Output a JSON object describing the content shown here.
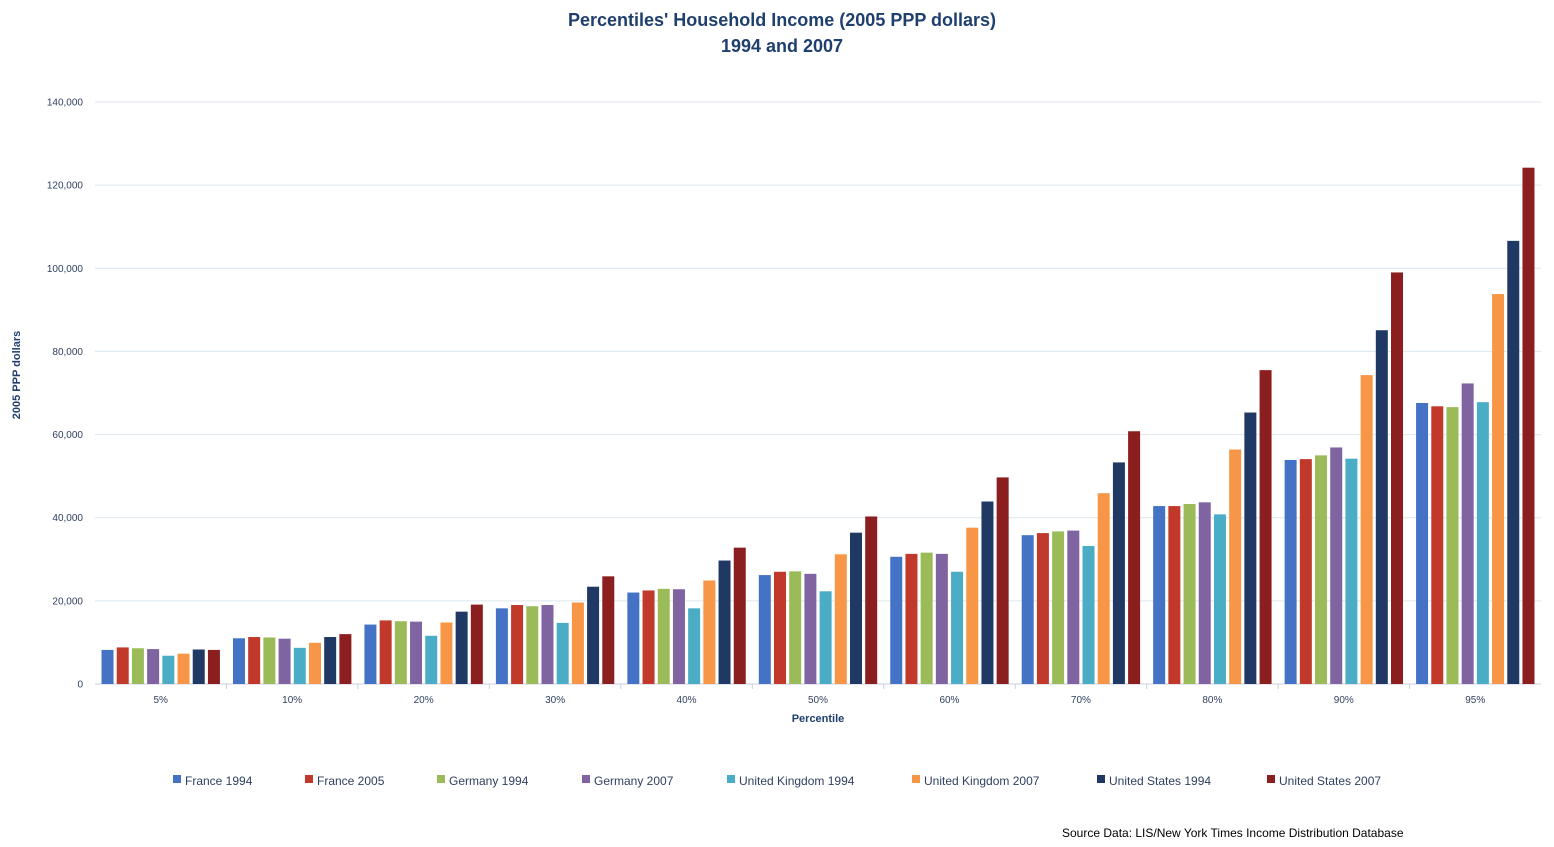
{
  "chart_data": {
    "type": "bar",
    "title": "Percentiles' Household Income (2005 PPP dollars)",
    "subtitle": "1994 and 2007",
    "xlabel": "Percentile",
    "ylabel": "2005 PPP dollars",
    "ylim": [
      0,
      140000
    ],
    "yticks": [
      0,
      20000,
      40000,
      60000,
      80000,
      100000,
      120000,
      140000
    ],
    "ytick_labels": [
      "0",
      "20,000",
      "40,000",
      "60,000",
      "80,000",
      "100,000",
      "120,000",
      "140,000"
    ],
    "grid": true,
    "legend_position": "bottom",
    "categories": [
      "5%",
      "10%",
      "20%",
      "30%",
      "40%",
      "50%",
      "60%",
      "70%",
      "80%",
      "90%",
      "95%"
    ],
    "series": [
      {
        "name": "France 1994",
        "color": "#4472c4",
        "values": [
          8200,
          11000,
          14300,
          18200,
          22000,
          26200,
          30600,
          35800,
          42800,
          53900,
          67600
        ]
      },
      {
        "name": "France 2005",
        "color": "#c0392b",
        "values": [
          8800,
          11300,
          15300,
          19000,
          22500,
          27000,
          31300,
          36300,
          42800,
          54100,
          66800
        ]
      },
      {
        "name": "Germany 1994",
        "color": "#9bbb59",
        "values": [
          8600,
          11200,
          15100,
          18700,
          22900,
          27100,
          31600,
          36700,
          43300,
          55000,
          66600
        ]
      },
      {
        "name": "Germany 2007",
        "color": "#8064a2",
        "values": [
          8400,
          10900,
          15000,
          19000,
          22800,
          26500,
          31300,
          36900,
          43700,
          56900,
          72300
        ]
      },
      {
        "name": "United Kingdom 1994",
        "color": "#4bacc6",
        "values": [
          6800,
          8700,
          11600,
          14700,
          18200,
          22300,
          27000,
          33200,
          40800,
          54200,
          67800
        ]
      },
      {
        "name": "United Kingdom 2007",
        "color": "#f79646",
        "values": [
          7300,
          9900,
          14800,
          19600,
          24900,
          31200,
          37600,
          45900,
          56400,
          74300,
          93800
        ]
      },
      {
        "name": "United States 1994",
        "color": "#1f3864",
        "values": [
          8300,
          11300,
          17400,
          23400,
          29700,
          36400,
          43900,
          53300,
          65300,
          85100,
          106600
        ]
      },
      {
        "name": "United States 2007",
        "color": "#8b1e1e",
        "values": [
          8200,
          12000,
          19100,
          25900,
          32800,
          40300,
          49700,
          60800,
          75500,
          99000,
          124200
        ]
      }
    ]
  },
  "source_text": "Source Data:  LIS/New York Times Income Distribution Database"
}
